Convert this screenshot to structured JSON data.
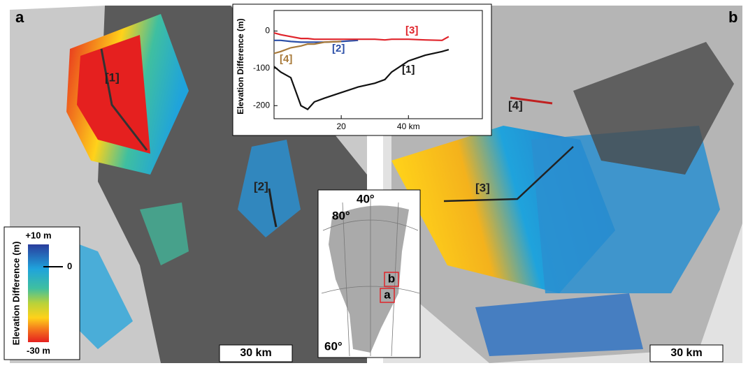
{
  "panels": [
    {
      "label": "a",
      "scale_bar": "30 km"
    },
    {
      "label": "b",
      "scale_bar": "30 km"
    }
  ],
  "colorbar": {
    "title": "Elevation Difference (m)",
    "max_label": "+10 m",
    "zero_label": "0",
    "min_label": "-30 m"
  },
  "locator": {
    "lon_label": "40°",
    "lat_labels": [
      "80°",
      "60°"
    ],
    "boxes": [
      "b",
      "a"
    ]
  },
  "chart_data": {
    "type": "line",
    "ylabel": "Elevation Difference (m)",
    "xlim": [
      0,
      62
    ],
    "ylim": [
      -235,
      55
    ],
    "xticks": [
      20,
      {
        "value": 40,
        "label": "40 km"
      }
    ],
    "yticks": [
      0,
      -100,
      -200
    ],
    "x": [
      0,
      2,
      5,
      8,
      10,
      12,
      15,
      20,
      25,
      30,
      33,
      35,
      40,
      45,
      50,
      52
    ],
    "series": [
      {
        "name": "[1]",
        "color": "#111111",
        "values": [
          -95,
          -110,
          -125,
          -200,
          -210,
          -190,
          -180,
          -165,
          -150,
          -140,
          -130,
          -110,
          -80,
          -65,
          -55,
          -50
        ]
      },
      {
        "name": "[2]",
        "color": "#2b4fa8",
        "values": [
          -25,
          -25,
          -28,
          -30,
          -30,
          -30,
          -30,
          -28,
          -25,
          null,
          null,
          null,
          null,
          null,
          null,
          null
        ]
      },
      {
        "name": "[3]",
        "color": "#e0242b",
        "values": [
          -5,
          -10,
          -15,
          -20,
          -20,
          -22,
          -22,
          -22,
          -22,
          -22,
          -24,
          -22,
          -22,
          -24,
          -25,
          -15
        ]
      },
      {
        "name": "[4]",
        "color": "#a87a3a",
        "values": [
          -60,
          -55,
          -45,
          -40,
          -35,
          -35,
          -30,
          -28,
          null,
          null,
          null,
          null,
          null,
          null,
          null,
          null
        ]
      }
    ]
  }
}
